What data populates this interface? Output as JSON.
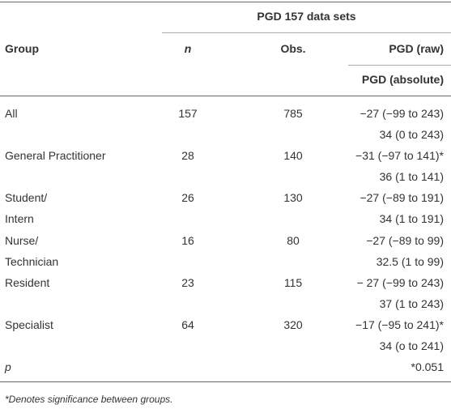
{
  "header": {
    "span_title": "PGD 157 data sets",
    "group": "Group",
    "n": "n",
    "obs": "Obs.",
    "raw": "PGD (raw)",
    "absolute": "PGD (absolute)"
  },
  "table": {
    "rows": [
      {
        "group": [
          "All"
        ],
        "n": 157,
        "obs": 785,
        "raw": "−27 (−99 to 243)",
        "absolute": "34 (0 to 243)"
      },
      {
        "group": [
          "General Practitioner"
        ],
        "n": 28,
        "obs": 140,
        "raw": "−31 (−97 to 141)*",
        "absolute": "36 (1 to 141)"
      },
      {
        "group": [
          "Student/",
          "Intern"
        ],
        "n": 26,
        "obs": 130,
        "raw": "−27 (−89 to 191)",
        "absolute": "34 (1 to 191)"
      },
      {
        "group": [
          "Nurse/",
          "Technician"
        ],
        "n": 16,
        "obs": 80,
        "raw": "−27 (−89 to 99)",
        "absolute": "32.5 (1 to 99)"
      },
      {
        "group": [
          "Resident"
        ],
        "n": 23,
        "obs": 115,
        "raw": "− 27 (−99 to 243)",
        "absolute": "37 (1 to 243)"
      },
      {
        "group": [
          "Specialist"
        ],
        "n": 64,
        "obs": 320,
        "raw": "−17 (−95 to 241)*",
        "absolute": "34 (o to 241)"
      }
    ],
    "p_row": {
      "group": "p",
      "value": "*0.051"
    }
  },
  "footnote": "*Denotes significance between groups."
}
